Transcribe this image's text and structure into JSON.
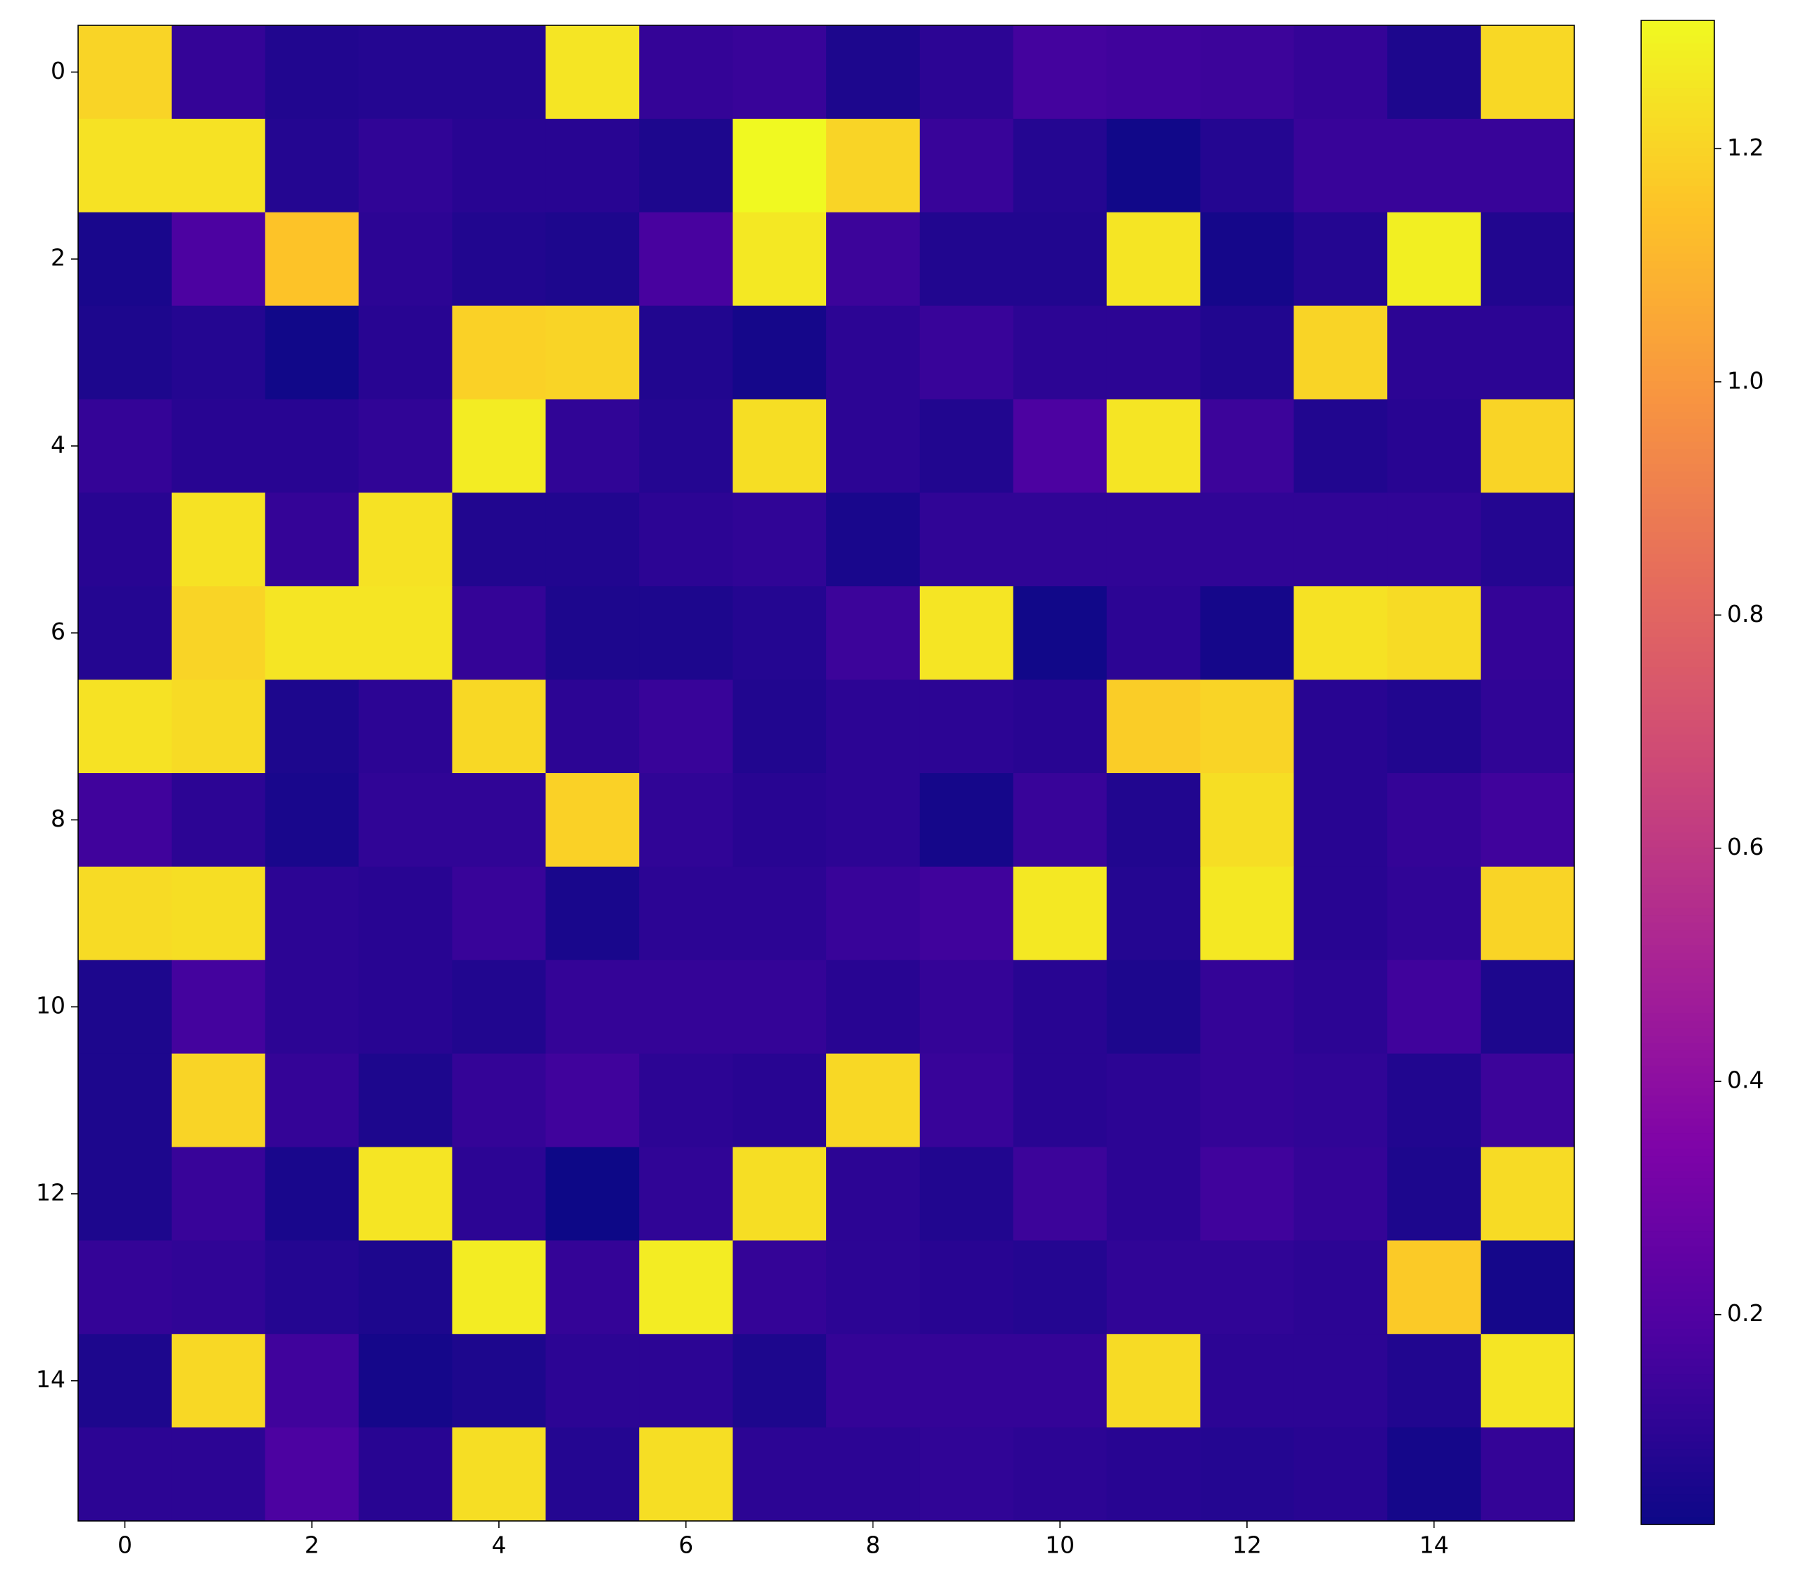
{
  "chart_data": {
    "type": "heatmap",
    "colormap": "plasma",
    "xlim": [
      -0.5,
      15.5
    ],
    "ylim": [
      15.5,
      -0.5
    ],
    "xticks": [
      0,
      2,
      4,
      6,
      8,
      10,
      12,
      14
    ],
    "yticks": [
      0,
      2,
      4,
      6,
      8,
      10,
      12,
      14
    ],
    "zlim": [
      0.02,
      1.31
    ],
    "zticks": [
      0.2,
      0.4,
      0.6,
      0.8,
      {
        "value": 1,
        "label": "1.0"
      },
      1.2
    ],
    "z": [
      [
        1.2,
        0.12,
        0.07,
        0.08,
        0.08,
        1.25,
        0.12,
        0.13,
        0.06,
        0.1,
        0.16,
        0.15,
        0.14,
        0.12,
        0.06,
        1.21
      ],
      [
        1.24,
        1.24,
        0.08,
        0.11,
        0.09,
        0.09,
        0.06,
        1.31,
        1.2,
        0.13,
        0.08,
        0.03,
        0.08,
        0.13,
        0.13,
        0.13
      ],
      [
        0.05,
        0.18,
        1.15,
        0.1,
        0.07,
        0.06,
        0.17,
        1.26,
        0.14,
        0.07,
        0.07,
        1.25,
        0.04,
        0.08,
        1.28,
        0.07
      ],
      [
        0.06,
        0.08,
        0.03,
        0.09,
        1.19,
        1.2,
        0.07,
        0.04,
        0.1,
        0.13,
        0.1,
        0.1,
        0.07,
        1.2,
        0.1,
        0.1
      ],
      [
        0.12,
        0.09,
        0.09,
        0.11,
        1.27,
        0.11,
        0.08,
        1.23,
        0.1,
        0.07,
        0.18,
        1.25,
        0.14,
        0.07,
        0.09,
        1.2
      ],
      [
        0.09,
        1.24,
        0.12,
        1.24,
        0.07,
        0.07,
        0.1,
        0.11,
        0.05,
        0.11,
        0.11,
        0.11,
        0.11,
        0.11,
        0.11,
        0.08
      ],
      [
        0.08,
        1.2,
        1.25,
        1.25,
        0.12,
        0.06,
        0.06,
        0.08,
        0.14,
        1.25,
        0.03,
        0.1,
        0.04,
        1.24,
        1.22,
        0.12
      ],
      [
        1.24,
        1.22,
        0.06,
        0.1,
        1.21,
        0.1,
        0.13,
        0.07,
        0.1,
        0.1,
        0.09,
        1.18,
        1.2,
        0.09,
        0.07,
        0.11
      ],
      [
        0.15,
        0.1,
        0.05,
        0.11,
        0.11,
        1.19,
        0.11,
        0.09,
        0.1,
        0.04,
        0.13,
        0.07,
        1.23,
        0.09,
        0.12,
        0.15
      ],
      [
        1.22,
        1.23,
        0.1,
        0.09,
        0.13,
        0.05,
        0.1,
        0.1,
        0.13,
        0.15,
        1.26,
        0.08,
        1.26,
        0.09,
        0.11,
        1.2
      ],
      [
        0.06,
        0.16,
        0.1,
        0.09,
        0.07,
        0.12,
        0.12,
        0.12,
        0.09,
        0.12,
        0.09,
        0.06,
        0.12,
        0.1,
        0.15,
        0.06
      ],
      [
        0.06,
        1.2,
        0.12,
        0.06,
        0.12,
        0.15,
        0.1,
        0.09,
        1.21,
        0.13,
        0.09,
        0.1,
        0.12,
        0.11,
        0.07,
        0.14
      ],
      [
        0.06,
        0.13,
        0.05,
        1.25,
        0.1,
        0.02,
        0.11,
        1.23,
        0.1,
        0.07,
        0.14,
        0.1,
        0.15,
        0.12,
        0.06,
        1.22
      ],
      [
        0.12,
        0.11,
        0.08,
        0.06,
        1.27,
        0.12,
        1.27,
        0.12,
        0.1,
        0.09,
        0.08,
        0.11,
        0.11,
        0.1,
        1.17,
        0.04
      ],
      [
        0.06,
        1.21,
        0.15,
        0.04,
        0.06,
        0.1,
        0.1,
        0.06,
        0.12,
        0.12,
        0.12,
        1.22,
        0.1,
        0.1,
        0.07,
        1.25
      ],
      [
        0.1,
        0.1,
        0.18,
        0.09,
        1.23,
        0.08,
        1.23,
        0.1,
        0.1,
        0.11,
        0.1,
        0.09,
        0.08,
        0.09,
        0.04,
        0.12
      ]
    ]
  }
}
